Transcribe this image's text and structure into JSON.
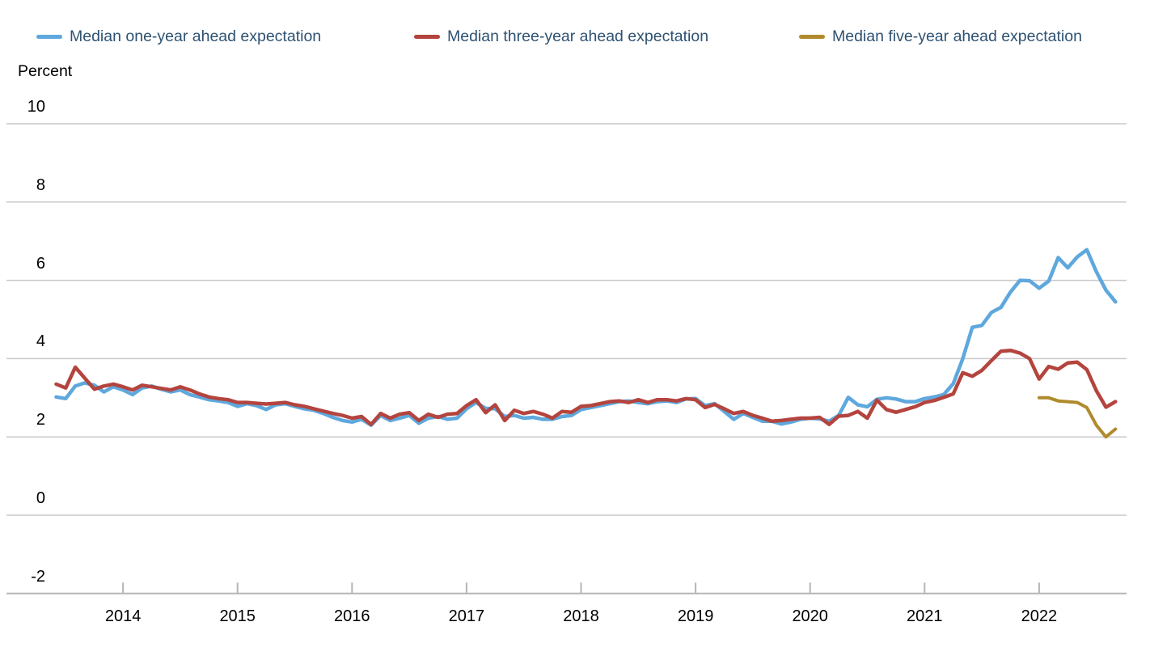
{
  "figure": {
    "background": "#ffffff",
    "unit_label": "Percent"
  },
  "legend": {
    "position": "top",
    "items": [
      {
        "label": "Median one-year ahead expectation",
        "color": "#5EA8DD"
      },
      {
        "label": "Median three-year ahead expectation",
        "color": "#B4443E"
      },
      {
        "label": "Median five-year ahead expectation",
        "color": "#B08B2D"
      }
    ]
  },
  "axis": {
    "unit_label": "Percent",
    "y_ticks": [
      "10",
      "8",
      "6",
      "4",
      "2",
      "0",
      "-2"
    ],
    "y_tick_values": [
      10,
      8,
      6,
      4,
      2,
      0,
      -2
    ],
    "x_years": [
      "2014",
      "2015",
      "2016",
      "2017",
      "2018",
      "2019",
      "2020",
      "2021",
      "2022"
    ],
    "grid_color": "#C9C9CB",
    "baseline_color": "#B5B5B8"
  },
  "chart_data": {
    "type": "line",
    "frequency": "monthly",
    "x_start": "2013-06",
    "x_end": "2022-09",
    "title": "",
    "xlabel": "",
    "ylabel": "Percent",
    "ylim": [
      -2,
      10
    ],
    "grid": true,
    "legend_position": "top",
    "series": [
      {
        "name": "Median one-year ahead expectation",
        "color": "#5EA8DD",
        "start": "2013-06",
        "values": [
          3.02,
          2.98,
          3.3,
          3.38,
          3.32,
          3.15,
          3.28,
          3.2,
          3.08,
          3.25,
          3.3,
          3.22,
          3.15,
          3.2,
          3.08,
          3.02,
          2.95,
          2.92,
          2.88,
          2.78,
          2.85,
          2.8,
          2.7,
          2.82,
          2.85,
          2.78,
          2.72,
          2.68,
          2.6,
          2.5,
          2.42,
          2.38,
          2.45,
          2.3,
          2.55,
          2.42,
          2.48,
          2.55,
          2.35,
          2.48,
          2.52,
          2.45,
          2.48,
          2.72,
          2.88,
          2.73,
          2.72,
          2.52,
          2.55,
          2.48,
          2.5,
          2.45,
          2.45,
          2.52,
          2.55,
          2.7,
          2.75,
          2.8,
          2.85,
          2.9,
          2.92,
          2.88,
          2.85,
          2.9,
          2.92,
          2.88,
          2.97,
          2.98,
          2.8,
          2.85,
          2.65,
          2.45,
          2.6,
          2.5,
          2.4,
          2.4,
          2.33,
          2.38,
          2.45,
          2.48,
          2.46,
          2.4,
          2.55,
          3.01,
          2.82,
          2.77,
          2.96,
          3.0,
          2.97,
          2.9,
          2.9,
          2.98,
          3.02,
          3.08,
          3.36,
          4.0,
          4.8,
          4.85,
          5.18,
          5.31,
          5.7,
          6.0,
          5.99,
          5.8,
          5.98,
          6.58,
          6.32,
          6.6,
          6.78,
          6.22,
          5.75,
          5.45
        ]
      },
      {
        "name": "Median three-year ahead expectation",
        "color": "#B4443E",
        "start": "2013-06",
        "values": [
          3.35,
          3.25,
          3.78,
          3.5,
          3.22,
          3.3,
          3.35,
          3.28,
          3.2,
          3.32,
          3.28,
          3.24,
          3.2,
          3.28,
          3.2,
          3.1,
          3.02,
          2.98,
          2.95,
          2.88,
          2.88,
          2.86,
          2.84,
          2.86,
          2.88,
          2.82,
          2.78,
          2.72,
          2.66,
          2.6,
          2.55,
          2.48,
          2.52,
          2.32,
          2.6,
          2.48,
          2.58,
          2.62,
          2.42,
          2.58,
          2.5,
          2.58,
          2.6,
          2.8,
          2.95,
          2.62,
          2.82,
          2.42,
          2.68,
          2.6,
          2.65,
          2.58,
          2.48,
          2.65,
          2.63,
          2.78,
          2.8,
          2.85,
          2.9,
          2.92,
          2.88,
          2.95,
          2.88,
          2.95,
          2.95,
          2.92,
          2.98,
          2.95,
          2.75,
          2.83,
          2.72,
          2.6,
          2.65,
          2.55,
          2.48,
          2.4,
          2.42,
          2.45,
          2.48,
          2.48,
          2.5,
          2.32,
          2.53,
          2.55,
          2.65,
          2.48,
          2.94,
          2.7,
          2.63,
          2.7,
          2.77,
          2.88,
          2.93,
          3.01,
          3.1,
          3.64,
          3.55,
          3.7,
          3.95,
          4.19,
          4.21,
          4.14,
          4.0,
          3.48,
          3.8,
          3.73,
          3.89,
          3.91,
          3.72,
          3.18,
          2.76,
          2.9
        ]
      },
      {
        "name": "Median five-year ahead expectation",
        "color": "#B08B2D",
        "start": "2022-01",
        "values": [
          3.0,
          3.0,
          2.92,
          2.9,
          2.88,
          2.75,
          2.3,
          2.0,
          2.2
        ]
      }
    ]
  }
}
